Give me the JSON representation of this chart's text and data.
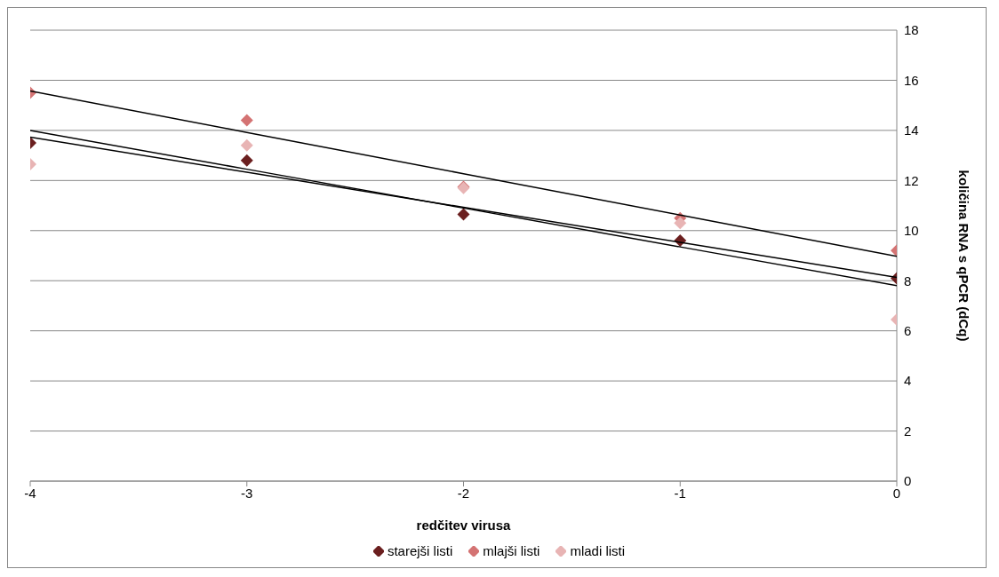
{
  "chart_data": {
    "type": "scatter",
    "xlabel": "redčitev virusa",
    "ylabel": "količina RNA s qPCR (dCq)",
    "x": [
      -4,
      -3,
      -2,
      -1,
      0
    ],
    "series": [
      {
        "name": "starejši listi",
        "color": "#6b1f1f",
        "values": [
          13.5,
          12.8,
          10.65,
          9.6,
          8.1
        ]
      },
      {
        "name": "mlajši listi",
        "color": "#d47373",
        "values": [
          15.5,
          14.4,
          11.75,
          10.5,
          9.2
        ]
      },
      {
        "name": "mladi listi",
        "color": "#e8b4b4",
        "values": [
          12.65,
          13.4,
          11.7,
          10.3,
          6.45
        ]
      },
      {
        "type": "line",
        "color": "#000000",
        "values": [
          13.73,
          12.33,
          10.93,
          9.53,
          8.13
        ],
        "marker": "none"
      },
      {
        "type": "line",
        "color": "#000000",
        "values": [
          15.57,
          13.92,
          12.27,
          10.62,
          8.97
        ],
        "marker": "none"
      },
      {
        "type": "line",
        "color": "#000000",
        "values": [
          14.0,
          12.45,
          10.9,
          9.35,
          7.8
        ],
        "marker": "none"
      }
    ],
    "xlim": [
      -4,
      0
    ],
    "xticks": [
      -4,
      -3,
      -2,
      -1,
      0
    ],
    "ylim": [
      0,
      18
    ],
    "yticks": [
      0,
      2,
      4,
      6,
      8,
      10,
      12,
      14,
      16,
      18
    ],
    "grid": "y",
    "legend": "bottom",
    "marker": "diamond"
  }
}
